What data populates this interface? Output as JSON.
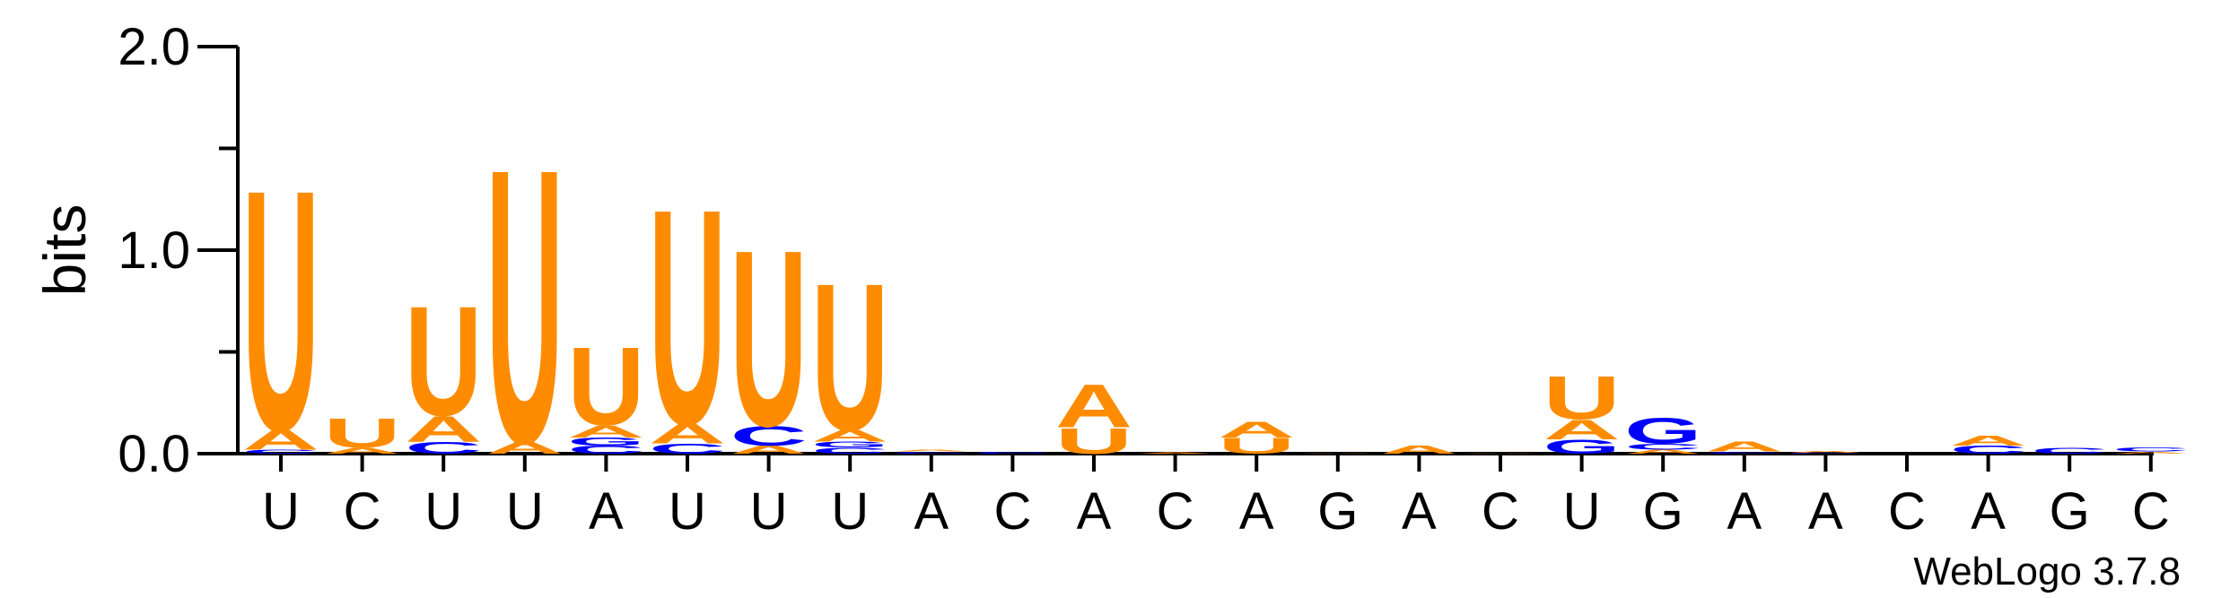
{
  "colors": {
    "U": "#ff8c00",
    "A": "#ff8c00",
    "C": "#0000ff",
    "G": "#0000ff",
    "axis": "#000000"
  },
  "chart_data": {
    "type": "sequence-logo",
    "ylabel": "bits",
    "ylim": [
      0,
      2
    ],
    "yticks": [
      "0.0",
      "1.0",
      "2.0"
    ],
    "credit": "WebLogo 3.7.8",
    "positions": [
      {
        "label": "U",
        "stack": [
          {
            "letter": "C",
            "bits": 0.02
          },
          {
            "letter": "A",
            "bits": 0.1
          },
          {
            "letter": "U",
            "bits": 1.23
          }
        ]
      },
      {
        "label": "C",
        "stack": [
          {
            "letter": "A",
            "bits": 0.03
          },
          {
            "letter": "U",
            "bits": 0.15
          }
        ]
      },
      {
        "label": "U",
        "stack": [
          {
            "letter": "C",
            "bits": 0.06
          },
          {
            "letter": "A",
            "bits": 0.13
          },
          {
            "letter": "U",
            "bits": 0.56
          }
        ]
      },
      {
        "label": "U",
        "stack": [
          {
            "letter": "A",
            "bits": 0.06
          },
          {
            "letter": "U",
            "bits": 1.4
          }
        ]
      },
      {
        "label": "A",
        "stack": [
          {
            "letter": "C",
            "bits": 0.04
          },
          {
            "letter": "G",
            "bits": 0.04
          },
          {
            "letter": "A",
            "bits": 0.06
          },
          {
            "letter": "U",
            "bits": 0.4
          }
        ]
      },
      {
        "label": "U",
        "stack": [
          {
            "letter": "C",
            "bits": 0.05
          },
          {
            "letter": "A",
            "bits": 0.1
          },
          {
            "letter": "U",
            "bits": 1.1
          }
        ]
      },
      {
        "label": "U",
        "stack": [
          {
            "letter": "A",
            "bits": 0.04
          },
          {
            "letter": "C",
            "bits": 0.1
          },
          {
            "letter": "U",
            "bits": 0.9
          }
        ]
      },
      {
        "label": "U",
        "stack": [
          {
            "letter": "C",
            "bits": 0.03
          },
          {
            "letter": "G",
            "bits": 0.03
          },
          {
            "letter": "A",
            "bits": 0.06
          },
          {
            "letter": "U",
            "bits": 0.75
          }
        ]
      },
      {
        "label": "A",
        "stack": [
          {
            "letter": "C",
            "bits": 0.01
          },
          {
            "letter": "A",
            "bits": 0.01
          }
        ]
      },
      {
        "label": "C",
        "stack": [
          {
            "letter": "C",
            "bits": 0.01
          }
        ]
      },
      {
        "label": "A",
        "stack": [
          {
            "letter": "U",
            "bits": 0.13
          },
          {
            "letter": "A",
            "bits": 0.22
          }
        ]
      },
      {
        "label": "C",
        "stack": [
          {
            "letter": "A",
            "bits": 0.005
          }
        ]
      },
      {
        "label": "A",
        "stack": [
          {
            "letter": "U",
            "bits": 0.08
          },
          {
            "letter": "A",
            "bits": 0.08
          }
        ]
      },
      {
        "label": "G",
        "stack": [
          {
            "letter": "A",
            "bits": 0.003
          }
        ]
      },
      {
        "label": "A",
        "stack": [
          {
            "letter": "A",
            "bits": 0.04
          }
        ]
      },
      {
        "label": "C",
        "stack": [
          {
            "letter": "A",
            "bits": 0.003
          }
        ]
      },
      {
        "label": "U",
        "stack": [
          {
            "letter": "G",
            "bits": 0.07
          },
          {
            "letter": "A",
            "bits": 0.1
          },
          {
            "letter": "U",
            "bits": 0.22
          }
        ]
      },
      {
        "label": "G",
        "stack": [
          {
            "letter": "A",
            "bits": 0.02
          },
          {
            "letter": "C",
            "bits": 0.03
          },
          {
            "letter": "G",
            "bits": 0.13
          }
        ]
      },
      {
        "label": "A",
        "stack": [
          {
            "letter": "C",
            "bits": 0.01
          },
          {
            "letter": "A",
            "bits": 0.05
          }
        ]
      },
      {
        "label": "A",
        "stack": [
          {
            "letter": "C",
            "bits": 0.005
          },
          {
            "letter": "A",
            "bits": 0.01
          }
        ]
      },
      {
        "label": "C",
        "stack": []
      },
      {
        "label": "A",
        "stack": [
          {
            "letter": "C",
            "bits": 0.04
          },
          {
            "letter": "A",
            "bits": 0.05
          }
        ]
      },
      {
        "label": "G",
        "stack": [
          {
            "letter": "C",
            "bits": 0.03
          }
        ]
      },
      {
        "label": "C",
        "stack": [
          {
            "letter": "A",
            "bits": 0.01
          },
          {
            "letter": "C",
            "bits": 0.02
          }
        ]
      }
    ]
  }
}
